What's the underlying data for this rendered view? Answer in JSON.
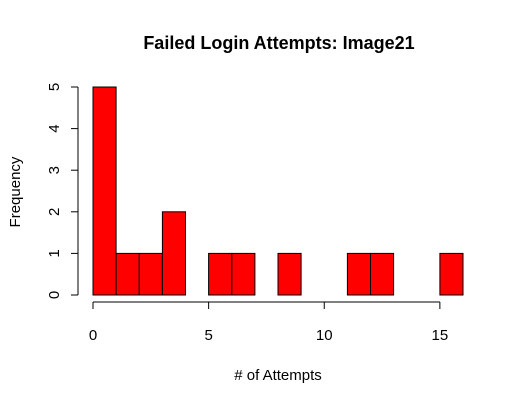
{
  "chart_data": {
    "type": "bar",
    "title": "Failed Login Attempts: Image21",
    "xlabel": "# of Attempts",
    "ylabel": "Frequency",
    "xlim": [
      0,
      16
    ],
    "ylim": [
      0,
      5
    ],
    "x_ticks": [
      0,
      5,
      10,
      15
    ],
    "y_ticks": [
      0,
      1,
      2,
      3,
      4,
      5
    ],
    "bins": [
      {
        "start": 0,
        "end": 1,
        "count": 5
      },
      {
        "start": 1,
        "end": 2,
        "count": 1
      },
      {
        "start": 2,
        "end": 3,
        "count": 1
      },
      {
        "start": 3,
        "end": 4,
        "count": 2
      },
      {
        "start": 4,
        "end": 5,
        "count": 0
      },
      {
        "start": 5,
        "end": 6,
        "count": 1
      },
      {
        "start": 6,
        "end": 7,
        "count": 1
      },
      {
        "start": 7,
        "end": 8,
        "count": 0
      },
      {
        "start": 8,
        "end": 9,
        "count": 1
      },
      {
        "start": 9,
        "end": 10,
        "count": 0
      },
      {
        "start": 10,
        "end": 11,
        "count": 0
      },
      {
        "start": 11,
        "end": 12,
        "count": 1
      },
      {
        "start": 12,
        "end": 13,
        "count": 1
      },
      {
        "start": 13,
        "end": 14,
        "count": 0
      },
      {
        "start": 14,
        "end": 15,
        "count": 0
      },
      {
        "start": 15,
        "end": 16,
        "count": 1
      }
    ],
    "bar_color": "#ff0000",
    "grid": false,
    "legend": "none"
  }
}
